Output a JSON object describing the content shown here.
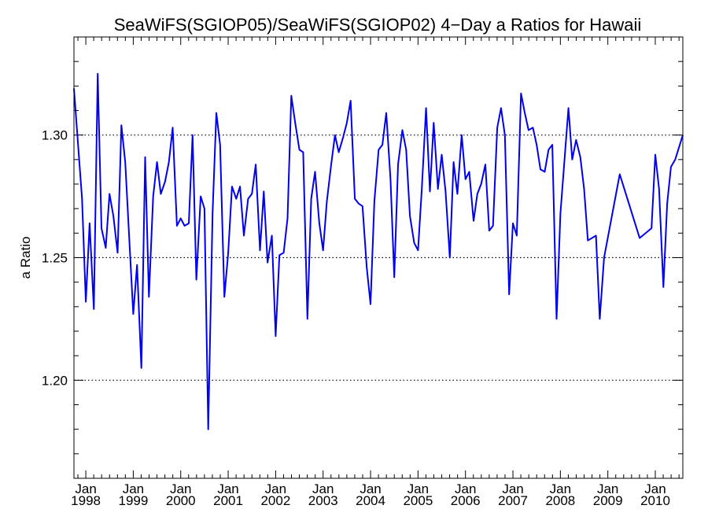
{
  "chart_data": {
    "type": "line",
    "title": "SeaWiFS(SGIOP05)/SeaWiFS(SGIOP02) 4−Day a Ratios for Hawaii",
    "xlabel": "",
    "ylabel": "a Ratio",
    "ylim": [
      1.16,
      1.34
    ],
    "y_ticks": [
      1.2,
      1.25,
      1.3
    ],
    "y_tick_labels": [
      "1.20",
      "1.25",
      "1.30"
    ],
    "gridlines": "dotted horizontal at major y ticks",
    "x_range": [
      1997.75,
      2010.58
    ],
    "x_ticks": [
      {
        "year": 1998,
        "month": "Jan",
        "label": "1998"
      },
      {
        "year": 1999,
        "month": "Jan",
        "label": "1999"
      },
      {
        "year": 2000,
        "month": "Jan",
        "label": "2000"
      },
      {
        "year": 2001,
        "month": "Jan",
        "label": "2001"
      },
      {
        "year": 2002,
        "month": "Jan",
        "label": "2002"
      },
      {
        "year": 2003,
        "month": "Jan",
        "label": "2003"
      },
      {
        "year": 2004,
        "month": "Jan",
        "label": "2004"
      },
      {
        "year": 2005,
        "month": "Jan",
        "label": "2005"
      },
      {
        "year": 2006,
        "month": "Jan",
        "label": "2006"
      },
      {
        "year": 2007,
        "month": "Jan",
        "label": "2007"
      },
      {
        "year": 2008,
        "month": "Jan",
        "label": "2008"
      },
      {
        "year": 2009,
        "month": "Jan",
        "label": "2009"
      },
      {
        "year": 2010,
        "month": "Jan",
        "label": "2010"
      }
    ],
    "series": [
      {
        "color": "#0000ee",
        "x": [
          1997.75,
          1997.92,
          1998.0,
          1998.08,
          1998.17,
          1998.25,
          1998.33,
          1998.42,
          1998.5,
          1998.58,
          1998.67,
          1998.75,
          1998.83,
          1998.92,
          1999.0,
          1999.08,
          1999.17,
          1999.25,
          1999.33,
          1999.42,
          1999.5,
          1999.58,
          1999.67,
          1999.75,
          1999.83,
          1999.92,
          2000.0,
          2000.08,
          2000.17,
          2000.25,
          2000.33,
          2000.42,
          2000.5,
          2000.58,
          2000.67,
          2000.75,
          2000.83,
          2000.92,
          2001.0,
          2001.08,
          2001.17,
          2001.25,
          2001.33,
          2001.42,
          2001.5,
          2001.58,
          2001.67,
          2001.75,
          2001.83,
          2001.92,
          2002.0,
          2002.08,
          2002.17,
          2002.25,
          2002.33,
          2002.42,
          2002.5,
          2002.58,
          2002.67,
          2002.75,
          2002.83,
          2002.92,
          2003.0,
          2003.08,
          2003.17,
          2003.25,
          2003.33,
          2003.42,
          2003.5,
          2003.58,
          2003.67,
          2003.75,
          2003.83,
          2003.92,
          2004.0,
          2004.08,
          2004.17,
          2004.25,
          2004.33,
          2004.42,
          2004.5,
          2004.58,
          2004.67,
          2004.75,
          2004.83,
          2004.92,
          2005.0,
          2005.08,
          2005.17,
          2005.25,
          2005.33,
          2005.42,
          2005.5,
          2005.58,
          2005.67,
          2005.75,
          2005.83,
          2005.92,
          2006.0,
          2006.08,
          2006.17,
          2006.25,
          2006.33,
          2006.42,
          2006.5,
          2006.58,
          2006.67,
          2006.75,
          2006.83,
          2006.92,
          2007.0,
          2007.08,
          2007.17,
          2007.25,
          2007.33,
          2007.42,
          2007.5,
          2007.58,
          2007.67,
          2007.75,
          2007.83,
          2007.92,
          2008.0,
          2008.17,
          2008.25,
          2008.33,
          2008.42,
          2008.5,
          2008.58,
          2008.75,
          2008.83,
          2008.92,
          2009.25,
          2009.67,
          2009.92,
          2010.0,
          2010.08,
          2010.17,
          2010.25,
          2010.33,
          2010.42,
          2010.58
        ],
        "y": [
          1.319,
          1.274,
          1.232,
          1.264,
          1.229,
          1.325,
          1.262,
          1.254,
          1.276,
          1.267,
          1.252,
          1.304,
          1.289,
          1.256,
          1.227,
          1.247,
          1.205,
          1.291,
          1.234,
          1.275,
          1.289,
          1.276,
          1.281,
          1.289,
          1.303,
          1.263,
          1.266,
          1.263,
          1.264,
          1.3,
          1.241,
          1.275,
          1.27,
          1.18,
          1.268,
          1.309,
          1.296,
          1.234,
          1.252,
          1.279,
          1.274,
          1.279,
          1.259,
          1.274,
          1.276,
          1.288,
          1.253,
          1.277,
          1.248,
          1.259,
          1.218,
          1.251,
          1.252,
          1.266,
          1.316,
          1.304,
          1.294,
          1.293,
          1.225,
          1.274,
          1.285,
          1.264,
          1.253,
          1.273,
          1.288,
          1.3,
          1.293,
          1.299,
          1.305,
          1.314,
          1.274,
          1.272,
          1.271,
          1.246,
          1.231,
          1.273,
          1.294,
          1.296,
          1.309,
          1.282,
          1.242,
          1.288,
          1.302,
          1.294,
          1.267,
          1.256,
          1.253,
          1.278,
          1.311,
          1.277,
          1.305,
          1.278,
          1.292,
          1.277,
          1.25,
          1.289,
          1.276,
          1.3,
          1.282,
          1.285,
          1.265,
          1.276,
          1.28,
          1.288,
          1.261,
          1.263,
          1.303,
          1.311,
          1.3,
          1.235,
          1.264,
          1.259,
          1.317,
          1.309,
          1.302,
          1.303,
          1.296,
          1.286,
          1.285,
          1.294,
          1.296,
          1.225,
          1.268,
          1.311,
          1.29,
          1.298,
          1.291,
          1.278,
          1.257,
          1.259,
          1.225,
          1.25,
          1.284,
          1.258,
          1.262,
          1.292,
          1.278,
          1.238,
          1.272,
          1.287,
          1.29,
          1.3
        ]
      }
    ]
  }
}
